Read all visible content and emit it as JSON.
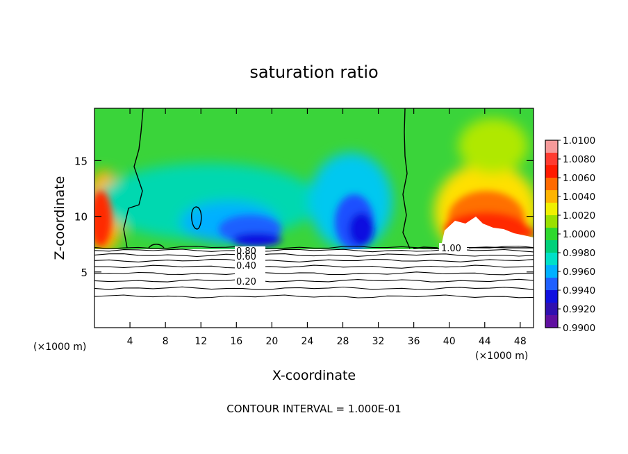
{
  "chart_data": {
    "type": "heatmap",
    "title": "saturation ratio",
    "xlabel": "X-coordinate",
    "ylabel": "Z-coordinate",
    "x_unit": "(×1000 m)",
    "z_unit": "(×1000 m)",
    "xlim": [
      0,
      49.5
    ],
    "ylim": [
      0,
      19.7
    ],
    "x_ticks": [
      4,
      8,
      12,
      16,
      20,
      24,
      28,
      32,
      36,
      40,
      44,
      48
    ],
    "y_ticks": [
      5,
      10,
      15
    ],
    "colorbar": {
      "range": [
        0.99,
        1.01
      ],
      "labels": [
        "1.0100",
        "1.0080",
        "1.0060",
        "1.0040",
        "1.0020",
        "1.0000",
        "0.9980",
        "0.9960",
        "0.9940",
        "0.9920",
        "0.9900"
      ],
      "colors": [
        "#f59a9a",
        "#ff3b30",
        "#ff1a00",
        "#ff6a00",
        "#ffb400",
        "#f0f000",
        "#9ae000",
        "#2ed82e",
        "#00d07a",
        "#00e0c8",
        "#00b0ff",
        "#1f60ff",
        "#1010e0",
        "#3010b0",
        "#6010a0"
      ]
    },
    "contour_labels": [
      {
        "label": "1.00",
        "x": 39.5,
        "z": 7.2
      },
      {
        "label": "0.80",
        "x": 17.6,
        "z": 6.9
      },
      {
        "label": "0.60",
        "x": 17.6,
        "z": 6.5
      },
      {
        "label": "0.40",
        "x": 17.6,
        "z": 5.7
      },
      {
        "label": "0.20",
        "x": 17.6,
        "z": 4.2
      }
    ],
    "contour_levels_below_cloud_base": [
      1.0,
      0.9,
      0.8,
      0.7,
      0.6,
      0.5,
      0.4,
      0.3,
      0.2
    ],
    "cloud_base_z": 7.2,
    "footer": "CONTOUR INTERVAL = 1.000E-01"
  }
}
